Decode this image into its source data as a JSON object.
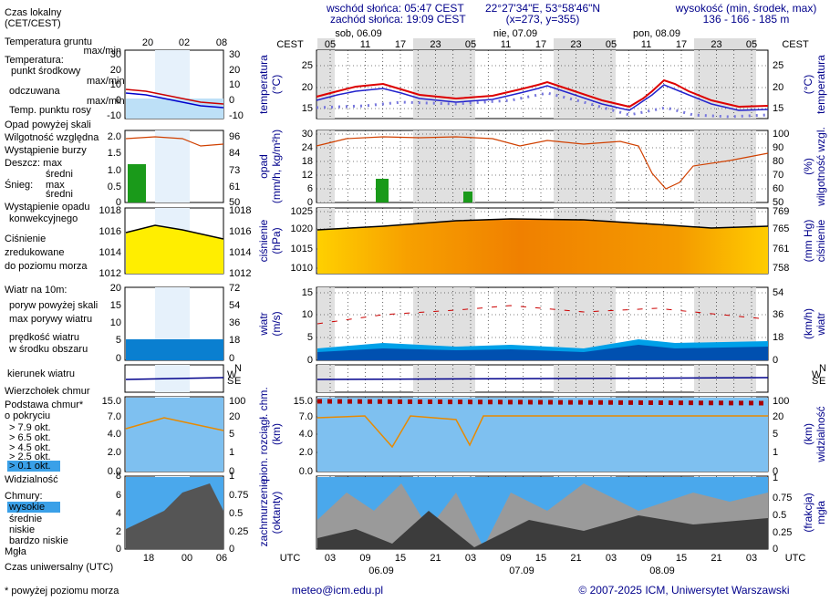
{
  "header": {
    "local_time": "Czas lokalny",
    "local_zone": "(CET/CEST)",
    "sunrise": "wschód słońca: 05:47 CEST",
    "sunset": "zachód słońca: 19:09 CEST",
    "coords": "22°27'34\"E, 53°58'46\"N",
    "grid": "(x=273, y=355)",
    "elevation_title": "wysokość (min, środek, max)",
    "elevation": "136 - 166 - 185 m"
  },
  "timeline": {
    "top_zone": "CEST",
    "days_top": [
      "sob, 06.09",
      "nie, 07.09",
      "pon, 08.09"
    ],
    "hours_top": [
      "05",
      "11",
      "17",
      "23",
      "05",
      "11",
      "17",
      "23",
      "05",
      "11",
      "17",
      "23",
      "05"
    ],
    "bottom_zone": "UTC",
    "hours_bottom": [
      "03",
      "09",
      "15",
      "21",
      "03",
      "09",
      "15",
      "21",
      "03",
      "09",
      "15",
      "21",
      "03"
    ],
    "days_bottom": [
      "06.09",
      "07.09",
      "08.09"
    ],
    "small_top": [
      "20",
      "02",
      "08"
    ],
    "small_bottom": [
      "18",
      "00",
      "06"
    ],
    "utc_label": "Czas uniwersalny (UTC)"
  },
  "panels": [
    {
      "label_left": [
        "temperatura",
        "(°C)"
      ],
      "label_right": [
        "(°C)",
        "temperatura"
      ],
      "ticks_left": [
        "25",
        "20",
        "15"
      ],
      "ticks_right": [
        "25",
        "20",
        "15"
      ],
      "small_left": [
        "30",
        "20",
        "10",
        "0",
        "-10"
      ],
      "small_right": [
        "30",
        "20",
        "10",
        "0",
        "-10"
      ],
      "legend": [
        "Temperatura gruntu",
        "max/min",
        "Temperatura:",
        "punkt środkowy",
        "max/min",
        "odczuwana",
        "max/min",
        "Temp. punktu rosy"
      ]
    },
    {
      "label_left": [
        "opad",
        "(mm/h, kg/m²h)"
      ],
      "label_right": [
        "(%)",
        "wilgotność wzgl."
      ],
      "ticks_left": [
        "30",
        "24",
        "18",
        "12",
        "6",
        "0"
      ],
      "ticks_right": [
        "100",
        "90",
        "80",
        "70",
        "60",
        "50"
      ],
      "small_left": [
        "2.0",
        "1.5",
        "1.0",
        "0.5",
        "0"
      ],
      "small_right": [
        "96",
        "84",
        "73",
        "61",
        "50"
      ],
      "legend": [
        "Opad powyżej skali",
        "Wilgotność względna",
        "Wystąpienie burzy",
        "Deszcz: max",
        "średni",
        "Śnieg:",
        "max",
        "średni",
        "Wystąpienie opadu",
        "konwekcyjnego"
      ]
    },
    {
      "label_left": [
        "ciśnienie",
        "(hPa)"
      ],
      "label_right": [
        "(mm Hg)",
        "ciśnienie"
      ],
      "ticks_left": [
        "1025",
        "1020",
        "1015",
        "1010"
      ],
      "ticks_right": [
        "769",
        "765",
        "761",
        "758"
      ],
      "small_left": [
        "1018",
        "1016",
        "1014",
        "1012"
      ],
      "small_right": [
        "1018",
        "1016",
        "1014",
        "1012"
      ],
      "legend": [
        "Ciśnienie",
        "zredukowane",
        "do poziomu morza"
      ]
    },
    {
      "label_left": [
        "wiatr",
        "(m/s)"
      ],
      "label_right": [
        "(km/h)",
        "wiatr"
      ],
      "ticks_left": [
        "15",
        "10",
        "5",
        "0"
      ],
      "ticks_right": [
        "54",
        "36",
        "18",
        "0"
      ],
      "small_left": [
        "20",
        "15",
        "10",
        "5",
        "0"
      ],
      "small_right": [
        "72",
        "54",
        "36",
        "18",
        "0"
      ],
      "legend": [
        "Wiatr na 10m:",
        "poryw powyżej skali",
        "max porywy wiatru",
        "prędkość wiatru",
        "w środku obszaru"
      ]
    },
    {
      "label_left": [],
      "label_right": [],
      "ticks_left": [],
      "ticks_right": [],
      "small_left": [],
      "small_right": [],
      "legend": [
        "kierunek wiatru"
      ],
      "compass": [
        "N",
        "W",
        "E",
        "S"
      ]
    },
    {
      "label_left": [
        "pion. rozciągł. chm.",
        "(km)"
      ],
      "label_right": [
        "(km)",
        "widzialność"
      ],
      "ticks_left": [
        "15.0",
        "7.0",
        "4.0",
        "2.0",
        "0.0"
      ],
      "ticks_right": [
        "100",
        "20",
        "5",
        "1",
        "0"
      ],
      "small_left": [
        "15.0",
        "7.0",
        "4.0",
        "2.0",
        "0.0"
      ],
      "small_right": [
        "100",
        "20",
        "5",
        "1",
        "0"
      ],
      "legend": [
        "Wierzchołek chmur",
        "Podstawa chmur*",
        "o pokryciu",
        "> 7.9 okt.",
        "> 6.5 okt.",
        "> 4.5 okt.",
        "> 2.5 okt.",
        "> 0.1 okt.",
        "Widzialność"
      ]
    },
    {
      "label_left": [
        "zachmurzenie",
        "(oktanty)"
      ],
      "label_right": [
        "(frakcja)",
        "mgła"
      ],
      "ticks_left": [],
      "ticks_right": [
        "1",
        "0.75",
        "0.5",
        "0.25",
        "0"
      ],
      "small_left": [
        "8",
        "6",
        "4",
        "2",
        "0"
      ],
      "small_right": [
        "1",
        "0.75",
        "0.5",
        "0.25",
        "0"
      ],
      "legend": [
        "Chmury:",
        "wysokie",
        "średnie",
        "niskie",
        "bardzo niskie",
        "Mgła"
      ]
    }
  ],
  "footer": {
    "note": "* powyżej poziomu morza",
    "email": "meteo@icm.edu.pl",
    "copyright": "© 2007-2025 ICM, Uniwersytet Warszawski"
  }
}
